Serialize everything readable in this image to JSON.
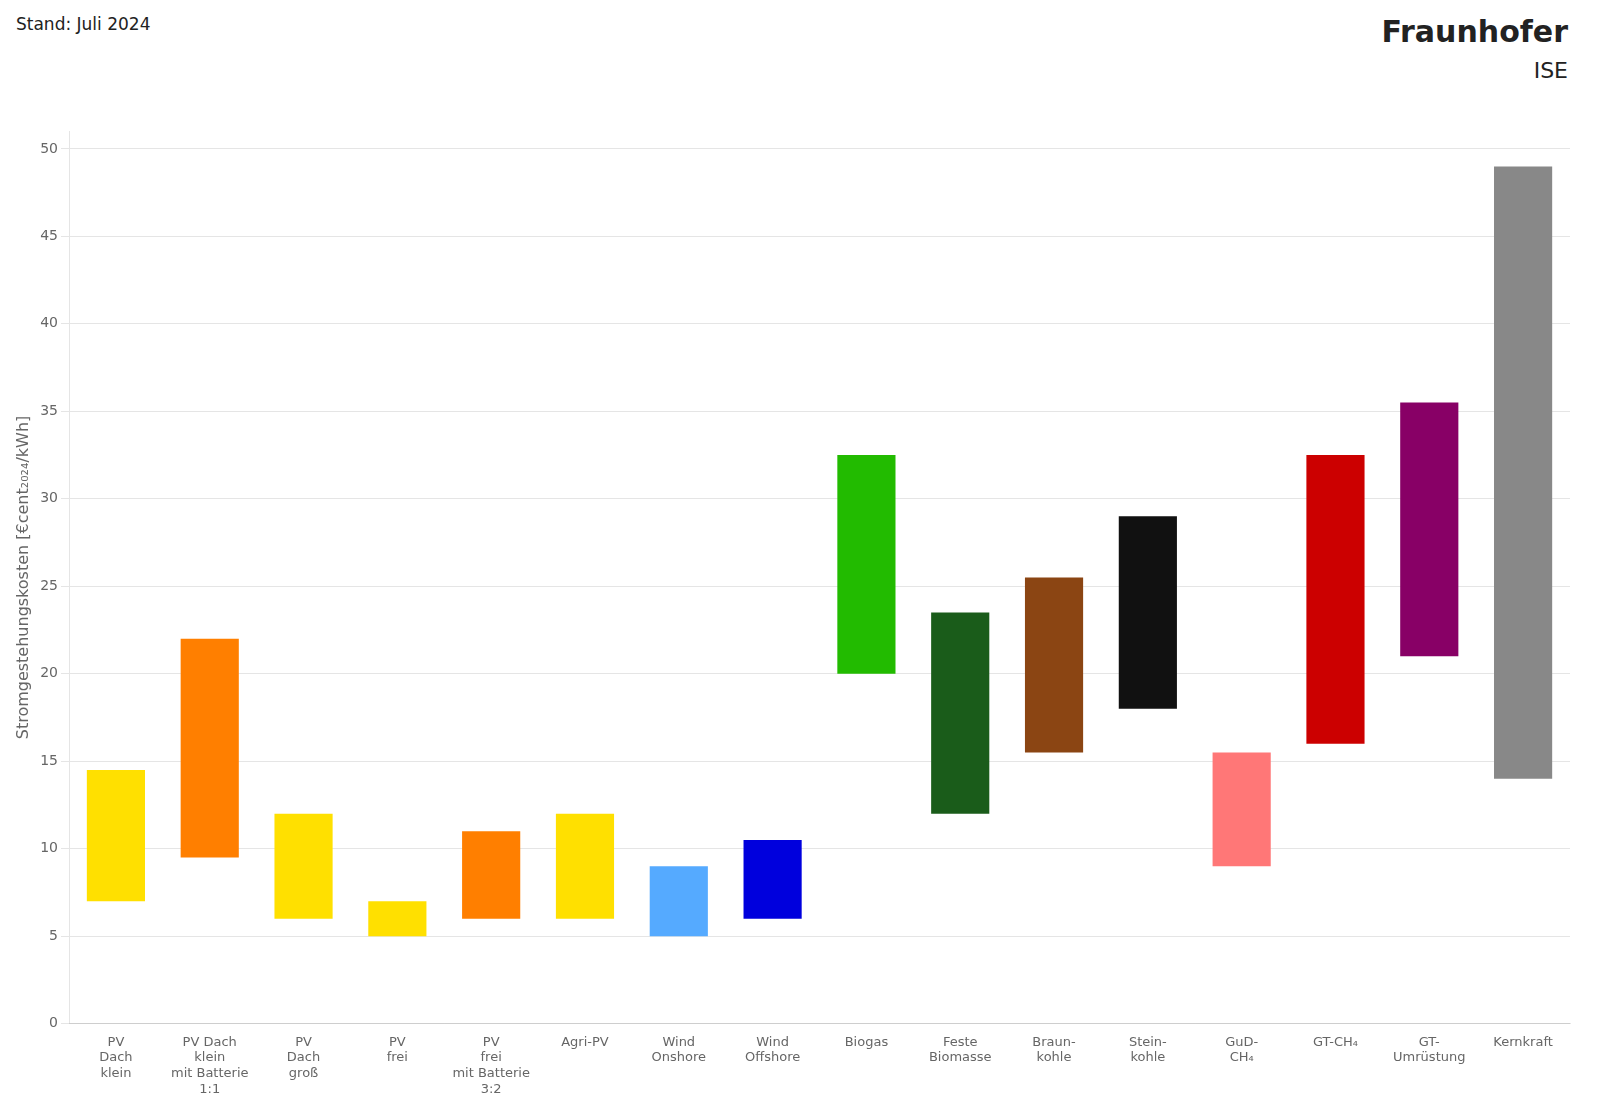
{
  "chart_data": {
    "type": "bar",
    "categories": [
      "PV\nDach\nklein",
      "PV Dach\nklein\nmit Batterie\n1:1",
      "PV\nDach\ngroß",
      "PV\nfrei",
      "PV\nfrei\nmit Batterie\n3:2",
      "Agri-PV",
      "Wind\nOnshore",
      "Wind\nOffshore",
      "Biogas",
      "Feste\nBiomasse",
      "Braun-\nkohle",
      "Stein-\nkohle",
      "GuD-\nCH₄",
      "GT-CH₄",
      "GT-\nUmrüstung",
      "Kernkraft"
    ],
    "values": [
      [
        7.0,
        14.5
      ],
      [
        9.5,
        22.0
      ],
      [
        6.0,
        12.0
      ],
      [
        5.0,
        7.0
      ],
      [
        6.0,
        11.0
      ],
      [
        6.0,
        12.0
      ],
      [
        5.0,
        9.0
      ],
      [
        6.0,
        10.5
      ],
      [
        20.0,
        32.5
      ],
      [
        12.0,
        23.5
      ],
      [
        15.5,
        25.5
      ],
      [
        18.0,
        29.0
      ],
      [
        9.0,
        15.5
      ],
      [
        16.0,
        32.5
      ],
      [
        21.0,
        35.5
      ],
      [
        14.0,
        49.0
      ]
    ],
    "colors": [
      "#FFE000",
      "#FF7F00",
      "#FFE000",
      "#FFE000",
      "#FF7F00",
      "#FFE000",
      "#55AAFF",
      "#0000DD",
      "#22BB00",
      "#1A5C1A",
      "#8B4513",
      "#111111",
      "#FF7777",
      "#CC0000",
      "#880066",
      "#888888"
    ],
    "ylabel": "Stromgestehungskosten [€cent₂₀₂₄/kWh]",
    "ylim": [
      0,
      51
    ],
    "yticks": [
      0,
      5,
      10,
      15,
      20,
      25,
      30,
      35,
      40,
      45,
      50
    ],
    "grid": true,
    "annotations": [
      "Stand: Juli 2024",
      "Fraunhofer",
      "ISE"
    ]
  }
}
